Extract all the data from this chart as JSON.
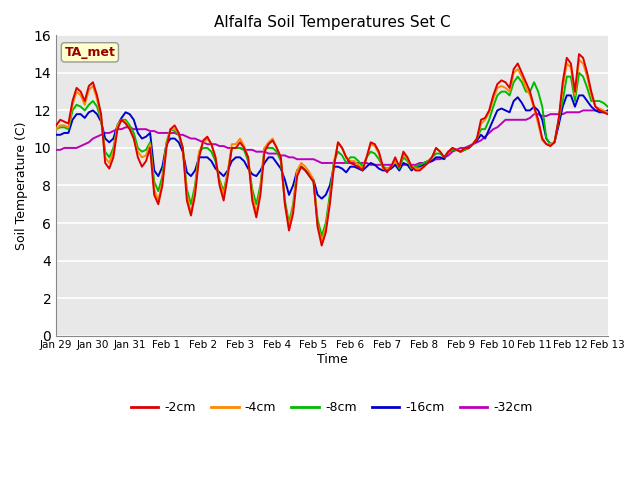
{
  "title": "Alfalfa Soil Temperatures Set C",
  "xlabel": "Time",
  "ylabel": "Soil Temperature (C)",
  "annotation": "TA_met",
  "ylim": [
    0,
    16
  ],
  "yticks": [
    0,
    2,
    4,
    6,
    8,
    10,
    12,
    14,
    16
  ],
  "x_labels": [
    "Jan 29",
    "Jan 30",
    "Jan 31",
    "Feb 1",
    "Feb 2",
    "Feb 3",
    "Feb 4",
    "Feb 5",
    "Feb 6",
    "Feb 7",
    "Feb 8",
    "Feb 9",
    "Feb 10",
    "Feb 11",
    "Feb 12",
    "Feb 13"
  ],
  "colors": {
    "-2cm": "#dd0000",
    "-4cm": "#ff8800",
    "-8cm": "#00bb00",
    "-16cm": "#0000cc",
    "-32cm": "#bb00bb"
  },
  "series": {
    "-2cm": [
      11.2,
      11.5,
      11.4,
      11.3,
      12.5,
      13.2,
      13.0,
      12.5,
      13.3,
      13.5,
      12.8,
      11.8,
      9.2,
      8.9,
      9.5,
      11.0,
      11.5,
      11.3,
      11.0,
      10.5,
      9.5,
      9.0,
      9.3,
      10.0,
      7.5,
      7.0,
      8.0,
      10.0,
      11.0,
      11.2,
      10.8,
      10.0,
      7.2,
      6.4,
      7.5,
      9.5,
      10.4,
      10.6,
      10.2,
      9.5,
      8.0,
      7.2,
      8.5,
      10.0,
      10.0,
      10.3,
      10.0,
      9.5,
      7.2,
      6.3,
      7.5,
      9.8,
      10.2,
      10.4,
      10.0,
      9.5,
      7.0,
      5.6,
      6.5,
      8.5,
      9.0,
      8.8,
      8.5,
      8.2,
      5.8,
      4.8,
      5.5,
      7.0,
      9.0,
      10.3,
      10.0,
      9.5,
      9.2,
      9.1,
      9.0,
      8.8,
      9.5,
      10.3,
      10.2,
      9.8,
      9.0,
      8.7,
      9.0,
      9.5,
      9.0,
      9.8,
      9.5,
      9.0,
      8.8,
      8.8,
      9.0,
      9.2,
      9.5,
      10.0,
      9.8,
      9.5,
      9.8,
      10.0,
      9.9,
      9.8,
      10.0,
      10.0,
      10.2,
      10.5,
      11.5,
      11.6,
      12.0,
      12.8,
      13.4,
      13.6,
      13.5,
      13.2,
      14.2,
      14.5,
      14.0,
      13.5,
      13.0,
      12.2,
      11.5,
      10.5,
      10.2,
      10.1,
      10.3,
      11.5,
      13.5,
      14.8,
      14.5,
      13.0,
      15.0,
      14.8,
      14.0,
      13.0,
      12.2,
      12.0,
      11.9,
      11.8
    ],
    "-4cm": [
      11.0,
      11.2,
      11.2,
      11.1,
      12.3,
      13.0,
      12.8,
      12.3,
      13.1,
      13.3,
      12.6,
      11.6,
      9.5,
      9.2,
      9.8,
      11.2,
      11.5,
      11.4,
      11.0,
      10.5,
      9.8,
      9.5,
      9.6,
      10.2,
      7.8,
      7.2,
      8.2,
      10.2,
      11.0,
      11.0,
      10.8,
      10.0,
      7.5,
      6.5,
      7.8,
      9.8,
      10.3,
      10.5,
      10.2,
      9.5,
      8.2,
      7.5,
      8.7,
      10.2,
      10.2,
      10.5,
      10.1,
      9.5,
      7.5,
      6.5,
      7.8,
      10.0,
      10.3,
      10.5,
      10.0,
      9.5,
      7.0,
      5.8,
      6.8,
      8.8,
      9.2,
      9.0,
      8.7,
      8.3,
      5.9,
      5.0,
      5.8,
      7.2,
      9.2,
      10.3,
      10.0,
      9.5,
      9.3,
      9.3,
      9.1,
      8.9,
      9.5,
      10.2,
      10.1,
      9.7,
      8.9,
      8.9,
      9.0,
      9.3,
      9.0,
      9.7,
      9.4,
      9.0,
      8.9,
      8.9,
      9.0,
      9.2,
      9.5,
      10.0,
      9.8,
      9.5,
      9.8,
      10.0,
      9.9,
      9.8,
      10.0,
      10.0,
      10.2,
      10.5,
      11.3,
      11.5,
      11.9,
      12.6,
      13.2,
      13.3,
      13.2,
      13.0,
      14.0,
      14.2,
      13.8,
      13.2,
      12.8,
      12.1,
      11.3,
      10.4,
      10.2,
      10.2,
      10.3,
      11.5,
      13.2,
      14.5,
      14.3,
      12.8,
      14.7,
      14.5,
      13.8,
      12.8,
      12.2,
      12.1,
      12.0,
      11.9
    ],
    "-8cm": [
      11.0,
      11.1,
      11.1,
      11.0,
      12.0,
      12.3,
      12.2,
      12.0,
      12.3,
      12.5,
      12.2,
      11.5,
      9.8,
      9.5,
      10.0,
      11.2,
      11.5,
      11.5,
      11.2,
      10.8,
      10.0,
      9.8,
      9.9,
      10.3,
      8.2,
      7.7,
      8.5,
      10.3,
      11.0,
      10.9,
      10.7,
      10.0,
      7.8,
      7.0,
      8.0,
      9.8,
      10.0,
      10.0,
      9.8,
      9.3,
      8.3,
      7.7,
      8.7,
      10.0,
      10.0,
      10.0,
      9.9,
      9.3,
      7.8,
      7.0,
      8.0,
      10.0,
      10.0,
      10.0,
      9.8,
      9.3,
      7.2,
      6.0,
      7.0,
      8.8,
      9.0,
      8.8,
      8.5,
      8.2,
      6.2,
      5.3,
      6.0,
      7.5,
      9.3,
      9.8,
      9.6,
      9.2,
      9.5,
      9.5,
      9.3,
      9.0,
      9.5,
      9.8,
      9.7,
      9.4,
      9.0,
      8.9,
      9.0,
      9.3,
      8.9,
      9.5,
      9.3,
      8.9,
      9.0,
      9.1,
      9.2,
      9.3,
      9.5,
      9.7,
      9.7,
      9.5,
      9.8,
      9.9,
      9.9,
      9.8,
      9.9,
      10.0,
      10.2,
      10.5,
      11.0,
      11.0,
      11.5,
      12.2,
      12.8,
      13.0,
      13.0,
      12.8,
      13.5,
      13.8,
      13.5,
      13.0,
      13.0,
      13.5,
      13.0,
      12.2,
      10.5,
      10.2,
      10.3,
      11.5,
      12.5,
      13.8,
      13.8,
      12.5,
      14.0,
      13.8,
      13.2,
      12.5,
      12.5,
      12.5,
      12.4,
      12.2
    ],
    "-16cm": [
      10.7,
      10.7,
      10.8,
      10.8,
      11.5,
      11.8,
      11.8,
      11.6,
      11.9,
      12.0,
      11.8,
      11.4,
      10.5,
      10.3,
      10.5,
      11.2,
      11.6,
      11.9,
      11.8,
      11.5,
      10.8,
      10.5,
      10.6,
      10.8,
      8.8,
      8.5,
      9.0,
      10.2,
      10.5,
      10.5,
      10.3,
      9.8,
      8.7,
      8.5,
      8.8,
      9.5,
      9.5,
      9.5,
      9.3,
      8.9,
      8.7,
      8.5,
      8.8,
      9.3,
      9.5,
      9.5,
      9.3,
      8.9,
      8.6,
      8.5,
      8.8,
      9.2,
      9.5,
      9.5,
      9.2,
      8.9,
      8.3,
      7.5,
      8.0,
      8.8,
      9.0,
      8.8,
      8.6,
      8.3,
      7.5,
      7.3,
      7.5,
      8.0,
      9.0,
      9.0,
      8.9,
      8.7,
      9.0,
      9.0,
      8.9,
      8.8,
      9.0,
      9.2,
      9.1,
      8.9,
      8.8,
      8.8,
      8.9,
      9.1,
      8.8,
      9.2,
      9.1,
      8.8,
      9.0,
      9.0,
      9.1,
      9.2,
      9.3,
      9.5,
      9.5,
      9.4,
      9.8,
      9.9,
      9.9,
      9.8,
      9.9,
      10.0,
      10.2,
      10.4,
      10.7,
      10.5,
      11.0,
      11.5,
      12.0,
      12.1,
      12.0,
      11.9,
      12.5,
      12.7,
      12.4,
      12.0,
      12.0,
      12.2,
      12.0,
      11.5,
      10.5,
      10.2,
      10.3,
      11.2,
      12.2,
      12.8,
      12.8,
      12.2,
      12.8,
      12.8,
      12.5,
      12.2,
      12.0,
      11.9,
      11.9,
      12.0
    ],
    "-32cm": [
      9.9,
      9.9,
      10.0,
      10.0,
      10.0,
      10.0,
      10.1,
      10.2,
      10.3,
      10.5,
      10.6,
      10.7,
      10.8,
      10.8,
      10.9,
      11.0,
      11.0,
      11.1,
      11.1,
      11.0,
      11.0,
      11.0,
      11.0,
      10.9,
      10.9,
      10.8,
      10.8,
      10.8,
      10.8,
      10.8,
      10.7,
      10.7,
      10.6,
      10.5,
      10.5,
      10.4,
      10.3,
      10.2,
      10.2,
      10.2,
      10.1,
      10.1,
      10.0,
      10.0,
      10.0,
      10.0,
      9.9,
      9.9,
      9.9,
      9.8,
      9.8,
      9.8,
      9.7,
      9.7,
      9.7,
      9.6,
      9.6,
      9.5,
      9.5,
      9.4,
      9.4,
      9.4,
      9.4,
      9.4,
      9.3,
      9.2,
      9.2,
      9.2,
      9.2,
      9.2,
      9.2,
      9.2,
      9.2,
      9.2,
      9.2,
      9.2,
      9.2,
      9.1,
      9.1,
      9.1,
      9.1,
      9.1,
      9.1,
      9.1,
      9.1,
      9.1,
      9.1,
      9.1,
      9.1,
      9.2,
      9.2,
      9.3,
      9.3,
      9.4,
      9.4,
      9.5,
      9.6,
      9.8,
      9.9,
      10.0,
      10.0,
      10.1,
      10.2,
      10.3,
      10.4,
      10.6,
      10.8,
      11.0,
      11.1,
      11.3,
      11.5,
      11.5,
      11.5,
      11.5,
      11.5,
      11.5,
      11.6,
      11.8,
      11.8,
      11.7,
      11.7,
      11.8,
      11.8,
      11.8,
      11.8,
      11.9,
      11.9,
      11.9,
      11.9,
      12.0,
      12.0,
      12.0,
      12.0,
      12.0,
      11.9,
      11.9
    ]
  },
  "background_color": "#e8e8e8",
  "fig_background": "#ffffff",
  "grid_color": "#ffffff",
  "legend_items": [
    "-2cm",
    "-4cm",
    "-8cm",
    "-16cm",
    "-32cm"
  ]
}
